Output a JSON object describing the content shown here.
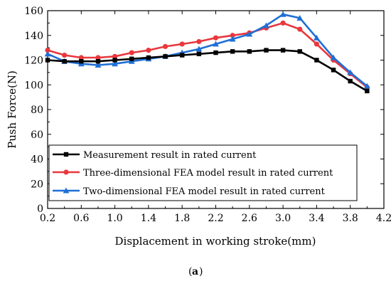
{
  "caption": {
    "open": "(",
    "letter": "a",
    "close": ")"
  },
  "chart_data": {
    "type": "line",
    "title": "",
    "xlabel": "Displacement in working stroke(mm)",
    "ylabel": "Push Force(N)",
    "xlim": [
      0.2,
      4.2
    ],
    "ylim": [
      0,
      160
    ],
    "xticks": [
      "0.2",
      "0.6",
      "1.0",
      "1.4",
      "1.8",
      "2.2",
      "2.6",
      "3.0",
      "3.4",
      "3.8",
      "4.2"
    ],
    "yticks": [
      "0",
      "20",
      "40",
      "60",
      "80",
      "100",
      "120",
      "140",
      "160"
    ],
    "grid": false,
    "legend_position": "bottom-left",
    "series": [
      {
        "name": "Measurement result in rated current",
        "color": "#000000",
        "marker": "square",
        "x": [
          0.2,
          0.4,
          0.6,
          0.8,
          1.0,
          1.2,
          1.4,
          1.6,
          1.8,
          2.0,
          2.2,
          2.4,
          2.6,
          2.8,
          3.0,
          3.2,
          3.4,
          3.6,
          3.8,
          4.0
        ],
        "y": [
          120,
          119,
          119,
          119,
          120,
          121,
          122,
          123,
          124,
          125,
          126,
          127,
          127,
          128,
          128,
          127,
          120,
          112,
          103,
          95
        ]
      },
      {
        "name": "Three-dimensional FEA model result in rated current",
        "color": "#e8383d",
        "marker": "circle",
        "x": [
          0.2,
          0.4,
          0.6,
          0.8,
          1.0,
          1.2,
          1.4,
          1.6,
          1.8,
          2.0,
          2.2,
          2.4,
          2.6,
          2.8,
          3.0,
          3.2,
          3.4,
          3.6,
          3.8,
          4.0
        ],
        "y": [
          128,
          124,
          122,
          122,
          123,
          126,
          128,
          131,
          133,
          135,
          138,
          140,
          142,
          146,
          150,
          145,
          133,
          120,
          109,
          98
        ]
      },
      {
        "name": "Two-dimensional FEA model result in rated current",
        "color": "#1f6fd6",
        "marker": "triangle",
        "x": [
          0.2,
          0.4,
          0.6,
          0.8,
          1.0,
          1.2,
          1.4,
          1.6,
          1.8,
          2.0,
          2.2,
          2.4,
          2.6,
          2.8,
          3.0,
          3.2,
          3.4,
          3.6,
          3.8,
          4.0
        ],
        "y": [
          125,
          119,
          117,
          116,
          117,
          119,
          121,
          123,
          126,
          129,
          133,
          137,
          141,
          148,
          157,
          154,
          138,
          122,
          110,
          99
        ]
      }
    ]
  }
}
